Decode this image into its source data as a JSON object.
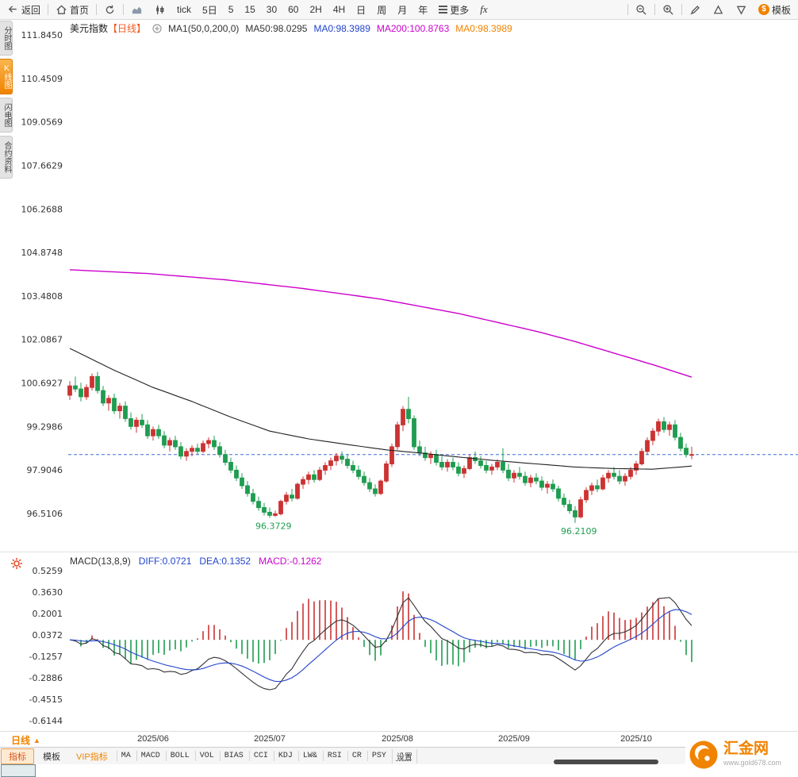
{
  "toolbar": {
    "back": "返回",
    "home": "首页",
    "tick": "tick",
    "day5": "5日",
    "periods": [
      "5",
      "15",
      "30",
      "60",
      "2H",
      "4H",
      "日",
      "周",
      "月",
      "年"
    ],
    "more": "更多",
    "fx": "fx",
    "template_icon": "$",
    "template": "模板"
  },
  "side_tabs": {
    "minute": "分时图",
    "kline": "K线图",
    "lightning": "闪电图",
    "contract": "合约资料"
  },
  "price_header": {
    "symbol": "美元指数",
    "period": "【日线】",
    "ma_group": "MA1(50,0,200,0)",
    "ma50": "MA50:98.0295",
    "ma0_blue": "MA0:98.3989",
    "ma200": "MA200:100.8763",
    "ma0_orange": "MA0:98.3989"
  },
  "macd_header": {
    "title": "MACD(13,8,9)",
    "diff": "DIFF:0.0721",
    "dea": "DEA:0.1352",
    "macd": "MACD:-0.1262"
  },
  "bottom_bar": {
    "period_label": "日线",
    "period_arrow": "▲",
    "tabs": [
      "指标",
      "模板",
      "VIP指标"
    ],
    "indicators": [
      "MA",
      "MACD",
      "BOLL",
      "VOL",
      "BIAS",
      "CCI",
      "KDJ",
      "LW&",
      "RSI",
      "CR",
      "PSY"
    ],
    "settings": "设置"
  },
  "watermark": {
    "brand": "汇金网",
    "url": "www.gold678.com"
  },
  "chart_data": {
    "type": "candlestick+macd",
    "title": "美元指数 日线",
    "last_price": 98.3989,
    "price_axis_ticks": [
      "111.8450",
      "110.4509",
      "109.0569",
      "107.6629",
      "106.2688",
      "104.8748",
      "103.4808",
      "102.0867",
      "100.6927",
      "99.2986",
      "97.9046",
      "96.5106"
    ],
    "macd_axis_ticks": [
      "0.5259",
      "0.3630",
      "0.2001",
      "0.0372",
      "-0.1257",
      "-0.2886",
      "-0.4515",
      "-0.6144"
    ],
    "x_labels": [
      {
        "text": "2025/06",
        "index": 15
      },
      {
        "text": "2025/07",
        "index": 36
      },
      {
        "text": "2025/08",
        "index": 59
      },
      {
        "text": "2025/09",
        "index": 80
      },
      {
        "text": "2025/10",
        "index": 102
      }
    ],
    "annotations": [
      {
        "text": "96.3729",
        "index": 36,
        "price": 96.3729
      },
      {
        "text": "96.2109",
        "index": 91,
        "price": 96.2109
      }
    ],
    "colors": {
      "up": "#cc3333",
      "down": "#1f9d50",
      "ma50": "#222222",
      "ma200": "#cc00cc",
      "diff": "#333333",
      "dea": "#2244cc",
      "last_price_line": "#3f6fd8",
      "annotation": "#1f9d50"
    },
    "macd_params": {
      "fast": 8,
      "slow": 13,
      "signal": 9
    },
    "ma50_anchors": [
      [
        0,
        101.8
      ],
      [
        8,
        101.1
      ],
      [
        15,
        100.55
      ],
      [
        22,
        100.1
      ],
      [
        29,
        99.6
      ],
      [
        36,
        99.15
      ],
      [
        43,
        98.9
      ],
      [
        50,
        98.72
      ],
      [
        57,
        98.55
      ],
      [
        63,
        98.45
      ],
      [
        70,
        98.32
      ],
      [
        77,
        98.2
      ],
      [
        84,
        98.1
      ],
      [
        91,
        98.0
      ],
      [
        98,
        97.95
      ],
      [
        105,
        97.93
      ],
      [
        112,
        98.03
      ]
    ],
    "ma200_anchors": [
      [
        0,
        104.32
      ],
      [
        14,
        104.2
      ],
      [
        28,
        104.0
      ],
      [
        42,
        103.72
      ],
      [
        56,
        103.38
      ],
      [
        70,
        102.92
      ],
      [
        84,
        102.35
      ],
      [
        91,
        102.02
      ],
      [
        98,
        101.65
      ],
      [
        105,
        101.28
      ],
      [
        112,
        100.88
      ]
    ],
    "candles": [
      [
        100.3,
        100.75,
        100.15,
        100.6
      ],
      [
        100.6,
        100.9,
        100.4,
        100.5
      ],
      [
        100.5,
        100.7,
        100.1,
        100.25
      ],
      [
        100.25,
        100.65,
        100.15,
        100.55
      ],
      [
        100.55,
        101.0,
        100.45,
        100.9
      ],
      [
        100.9,
        101.05,
        100.35,
        100.45
      ],
      [
        100.45,
        100.6,
        99.95,
        100.05
      ],
      [
        100.05,
        100.3,
        99.8,
        100.2
      ],
      [
        100.2,
        100.35,
        99.7,
        99.8
      ],
      [
        99.8,
        100.05,
        99.55,
        99.95
      ],
      [
        99.95,
        100.1,
        99.45,
        99.55
      ],
      [
        99.55,
        99.75,
        99.2,
        99.3
      ],
      [
        99.3,
        99.6,
        99.1,
        99.5
      ],
      [
        99.5,
        99.7,
        99.25,
        99.35
      ],
      [
        99.35,
        99.5,
        98.9,
        99.0
      ],
      [
        99.0,
        99.3,
        98.85,
        99.2
      ],
      [
        99.2,
        99.35,
        98.9,
        99.0
      ],
      [
        99.0,
        99.15,
        98.6,
        98.7
      ],
      [
        98.7,
        98.95,
        98.5,
        98.85
      ],
      [
        98.85,
        99.0,
        98.55,
        98.65
      ],
      [
        98.65,
        98.8,
        98.25,
        98.35
      ],
      [
        98.35,
        98.6,
        98.2,
        98.5
      ],
      [
        98.5,
        98.7,
        98.35,
        98.6
      ],
      [
        98.6,
        98.75,
        98.4,
        98.5
      ],
      [
        98.5,
        98.85,
        98.45,
        98.75
      ],
      [
        98.75,
        98.95,
        98.6,
        98.85
      ],
      [
        98.85,
        99.0,
        98.55,
        98.65
      ],
      [
        98.65,
        98.8,
        98.3,
        98.4
      ],
      [
        98.4,
        98.55,
        98.05,
        98.15
      ],
      [
        98.15,
        98.3,
        97.8,
        97.9
      ],
      [
        97.9,
        98.05,
        97.55,
        97.65
      ],
      [
        97.65,
        97.8,
        97.3,
        97.4
      ],
      [
        97.4,
        97.55,
        97.05,
        97.15
      ],
      [
        97.15,
        97.3,
        96.8,
        96.9
      ],
      [
        96.9,
        97.05,
        96.6,
        96.7
      ],
      [
        96.7,
        96.85,
        96.45,
        96.55
      ],
      [
        96.55,
        96.7,
        96.37,
        96.45
      ],
      [
        96.45,
        96.6,
        96.4,
        96.5
      ],
      [
        96.5,
        96.95,
        96.45,
        96.9
      ],
      [
        96.9,
        97.2,
        96.8,
        97.1
      ],
      [
        97.1,
        97.3,
        96.9,
        97.0
      ],
      [
        97.0,
        97.5,
        96.95,
        97.45
      ],
      [
        97.45,
        97.7,
        97.3,
        97.6
      ],
      [
        97.6,
        97.85,
        97.45,
        97.75
      ],
      [
        97.75,
        97.9,
        97.5,
        97.6
      ],
      [
        97.6,
        98.0,
        97.55,
        97.9
      ],
      [
        97.9,
        98.15,
        97.75,
        98.05
      ],
      [
        98.05,
        98.3,
        97.9,
        98.2
      ],
      [
        98.2,
        98.45,
        98.05,
        98.35
      ],
      [
        98.35,
        98.5,
        98.1,
        98.25
      ],
      [
        98.25,
        98.4,
        97.95,
        98.05
      ],
      [
        98.05,
        98.2,
        97.8,
        97.9
      ],
      [
        97.9,
        98.05,
        97.6,
        97.7
      ],
      [
        97.7,
        97.85,
        97.4,
        97.5
      ],
      [
        97.5,
        97.65,
        97.2,
        97.3
      ],
      [
        97.3,
        97.45,
        97.05,
        97.15
      ],
      [
        97.15,
        97.6,
        97.1,
        97.55
      ],
      [
        97.55,
        98.2,
        97.5,
        98.1
      ],
      [
        98.1,
        98.75,
        98.0,
        98.65
      ],
      [
        98.65,
        99.45,
        98.55,
        99.35
      ],
      [
        99.35,
        99.95,
        99.15,
        99.85
      ],
      [
        99.85,
        100.25,
        99.4,
        99.55
      ],
      [
        99.55,
        99.65,
        98.55,
        98.65
      ],
      [
        98.65,
        98.85,
        98.35,
        98.45
      ],
      [
        98.45,
        98.65,
        98.2,
        98.3
      ],
      [
        98.3,
        98.5,
        98.1,
        98.4
      ],
      [
        98.4,
        98.55,
        98.05,
        98.15
      ],
      [
        98.15,
        98.35,
        97.9,
        98.0
      ],
      [
        98.0,
        98.25,
        97.85,
        98.15
      ],
      [
        98.15,
        98.3,
        97.9,
        98.0
      ],
      [
        98.0,
        98.15,
        97.7,
        97.8
      ],
      [
        97.8,
        98.05,
        97.65,
        97.95
      ],
      [
        97.95,
        98.4,
        97.9,
        98.3
      ],
      [
        98.3,
        98.5,
        98.1,
        98.2
      ],
      [
        98.2,
        98.35,
        97.95,
        98.05
      ],
      [
        98.05,
        98.2,
        97.8,
        97.9
      ],
      [
        97.9,
        98.1,
        97.75,
        98.0
      ],
      [
        98.0,
        98.25,
        97.9,
        98.15
      ],
      [
        98.15,
        98.6,
        97.8,
        97.9
      ],
      [
        97.9,
        98.1,
        97.55,
        97.65
      ],
      [
        97.65,
        97.9,
        97.5,
        97.8
      ],
      [
        97.8,
        98.0,
        97.6,
        97.7
      ],
      [
        97.7,
        97.85,
        97.4,
        97.5
      ],
      [
        97.5,
        97.75,
        97.35,
        97.65
      ],
      [
        97.65,
        97.8,
        97.45,
        97.55
      ],
      [
        97.55,
        97.7,
        97.25,
        97.35
      ],
      [
        97.35,
        97.55,
        97.15,
        97.45
      ],
      [
        97.45,
        97.6,
        97.2,
        97.3
      ],
      [
        97.3,
        97.4,
        96.9,
        97.0
      ],
      [
        97.0,
        97.15,
        96.7,
        96.8
      ],
      [
        96.8,
        96.95,
        96.5,
        96.6
      ],
      [
        96.6,
        96.75,
        96.21,
        96.4
      ],
      [
        96.4,
        97.05,
        96.35,
        96.95
      ],
      [
        96.95,
        97.35,
        96.85,
        97.25
      ],
      [
        97.25,
        97.5,
        97.1,
        97.4
      ],
      [
        97.4,
        97.6,
        97.2,
        97.3
      ],
      [
        97.3,
        97.75,
        97.25,
        97.65
      ],
      [
        97.65,
        97.9,
        97.5,
        97.8
      ],
      [
        97.8,
        98.0,
        97.6,
        97.7
      ],
      [
        97.7,
        97.9,
        97.45,
        97.55
      ],
      [
        97.55,
        97.8,
        97.4,
        97.7
      ],
      [
        97.7,
        98.0,
        97.6,
        97.9
      ],
      [
        97.9,
        98.2,
        97.75,
        98.1
      ],
      [
        98.1,
        98.6,
        98.05,
        98.5
      ],
      [
        98.5,
        98.95,
        98.4,
        98.85
      ],
      [
        98.85,
        99.25,
        98.7,
        99.15
      ],
      [
        99.15,
        99.55,
        99.0,
        99.45
      ],
      [
        99.45,
        99.6,
        99.1,
        99.2
      ],
      [
        99.2,
        99.45,
        99.0,
        99.35
      ],
      [
        99.35,
        99.5,
        98.85,
        98.95
      ],
      [
        98.95,
        99.1,
        98.5,
        98.6
      ],
      [
        98.6,
        98.75,
        98.3,
        98.4
      ],
      [
        98.4,
        98.65,
        98.25,
        98.4
      ]
    ]
  }
}
